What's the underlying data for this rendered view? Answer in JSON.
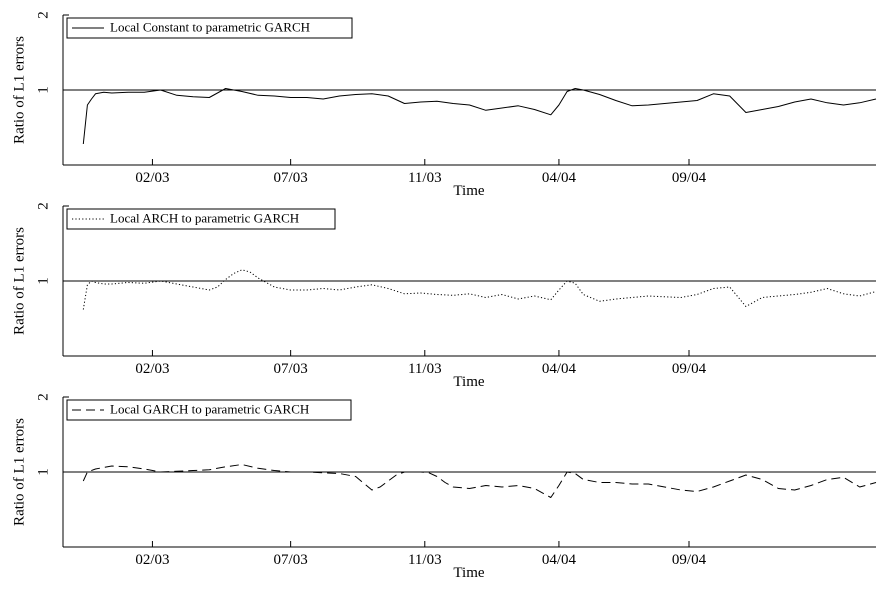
{
  "chart_data": [
    {
      "type": "line",
      "xlabel": "Time",
      "ylabel": "Ratio of L1 errors",
      "ylim": [
        0,
        2
      ],
      "yticks": [
        1,
        2
      ],
      "xlim": [
        0,
        100
      ],
      "xticks": [
        {
          "value": 11,
          "label": "02/03"
        },
        {
          "value": 28,
          "label": "07/03"
        },
        {
          "value": 44.5,
          "label": "11/03"
        },
        {
          "value": 61,
          "label": "04/04"
        },
        {
          "value": 77,
          "label": "09/04"
        }
      ],
      "reference_line": 1,
      "legend_position": "top-left",
      "series": [
        {
          "name": "Local Constant to parametric GARCH",
          "dash": "solid",
          "x": [
            2.5,
            3,
            3.5,
            4,
            5,
            6,
            8,
            10,
            12,
            14,
            16,
            18,
            20,
            22,
            24,
            26,
            28,
            30,
            32,
            34,
            36,
            38,
            40,
            42,
            44,
            46,
            48,
            50,
            52,
            54,
            56,
            58,
            60,
            61,
            62,
            63,
            64,
            66,
            68,
            70,
            72,
            74,
            76,
            78,
            80,
            82,
            84,
            86,
            88,
            90,
            92,
            94,
            96,
            98,
            100
          ],
          "y": [
            0.28,
            0.8,
            0.88,
            0.95,
            0.97,
            0.96,
            0.97,
            0.97,
            1.0,
            0.93,
            0.91,
            0.9,
            1.02,
            0.98,
            0.93,
            0.92,
            0.9,
            0.9,
            0.88,
            0.92,
            0.94,
            0.95,
            0.92,
            0.82,
            0.84,
            0.85,
            0.82,
            0.8,
            0.73,
            0.76,
            0.79,
            0.74,
            0.67,
            0.8,
            0.98,
            1.02,
            1.0,
            0.94,
            0.86,
            0.79,
            0.8,
            0.82,
            0.84,
            0.86,
            0.95,
            0.92,
            0.7,
            0.74,
            0.78,
            0.84,
            0.88,
            0.83,
            0.8,
            0.83,
            0.88
          ]
        },
        {
          "name": "Local ARCH to parametric GARCH",
          "dash": "dotted",
          "x": [
            2.5,
            3,
            3.5,
            4,
            5,
            6,
            8,
            10,
            12,
            14,
            16,
            18,
            19,
            20,
            21,
            22,
            23,
            24,
            26,
            28,
            30,
            32,
            34,
            36,
            38,
            40,
            42,
            44,
            46,
            48,
            50,
            52,
            54,
            56,
            58,
            60,
            61,
            62,
            63,
            64,
            66,
            68,
            70,
            72,
            74,
            76,
            78,
            80,
            82,
            84,
            86,
            88,
            90,
            92,
            94,
            96,
            98,
            100
          ],
          "y": [
            0.62,
            0.95,
            1.0,
            0.98,
            0.96,
            0.96,
            0.98,
            0.97,
            1.0,
            0.96,
            0.92,
            0.88,
            0.92,
            1.02,
            1.1,
            1.15,
            1.12,
            1.04,
            0.92,
            0.88,
            0.88,
            0.9,
            0.88,
            0.92,
            0.95,
            0.9,
            0.83,
            0.84,
            0.82,
            0.81,
            0.83,
            0.78,
            0.82,
            0.76,
            0.8,
            0.75,
            0.88,
            1.0,
            0.97,
            0.82,
            0.73,
            0.76,
            0.78,
            0.8,
            0.79,
            0.78,
            0.82,
            0.9,
            0.92,
            0.66,
            0.78,
            0.8,
            0.82,
            0.85,
            0.9,
            0.83,
            0.8,
            0.86
          ]
        },
        {
          "name": "Local GARCH to parametric GARCH",
          "dash": "dashed",
          "x": [
            2.5,
            3,
            4,
            6,
            8,
            10,
            12,
            14,
            16,
            18,
            20,
            22,
            24,
            26,
            28,
            30,
            32,
            34,
            36,
            37,
            38,
            39,
            40,
            41,
            42,
            44,
            45,
            46,
            47,
            48,
            50,
            52,
            54,
            56,
            58,
            60,
            61,
            62,
            63,
            64,
            66,
            68,
            70,
            72,
            74,
            76,
            78,
            80,
            82,
            84,
            86,
            88,
            90,
            92,
            94,
            96,
            98,
            100
          ],
          "y": [
            0.88,
            1.0,
            1.04,
            1.08,
            1.07,
            1.04,
            1.0,
            1.01,
            1.02,
            1.03,
            1.07,
            1.1,
            1.05,
            1.02,
            1.0,
            1.0,
            0.99,
            0.98,
            0.94,
            0.85,
            0.76,
            0.8,
            0.88,
            0.96,
            1.0,
            1.0,
            0.99,
            0.94,
            0.86,
            0.8,
            0.78,
            0.82,
            0.8,
            0.82,
            0.78,
            0.66,
            0.82,
            1.0,
            0.98,
            0.9,
            0.86,
            0.86,
            0.84,
            0.84,
            0.8,
            0.76,
            0.74,
            0.8,
            0.88,
            0.96,
            0.9,
            0.78,
            0.76,
            0.82,
            0.9,
            0.93,
            0.8,
            0.86
          ]
        }
      ]
    }
  ]
}
